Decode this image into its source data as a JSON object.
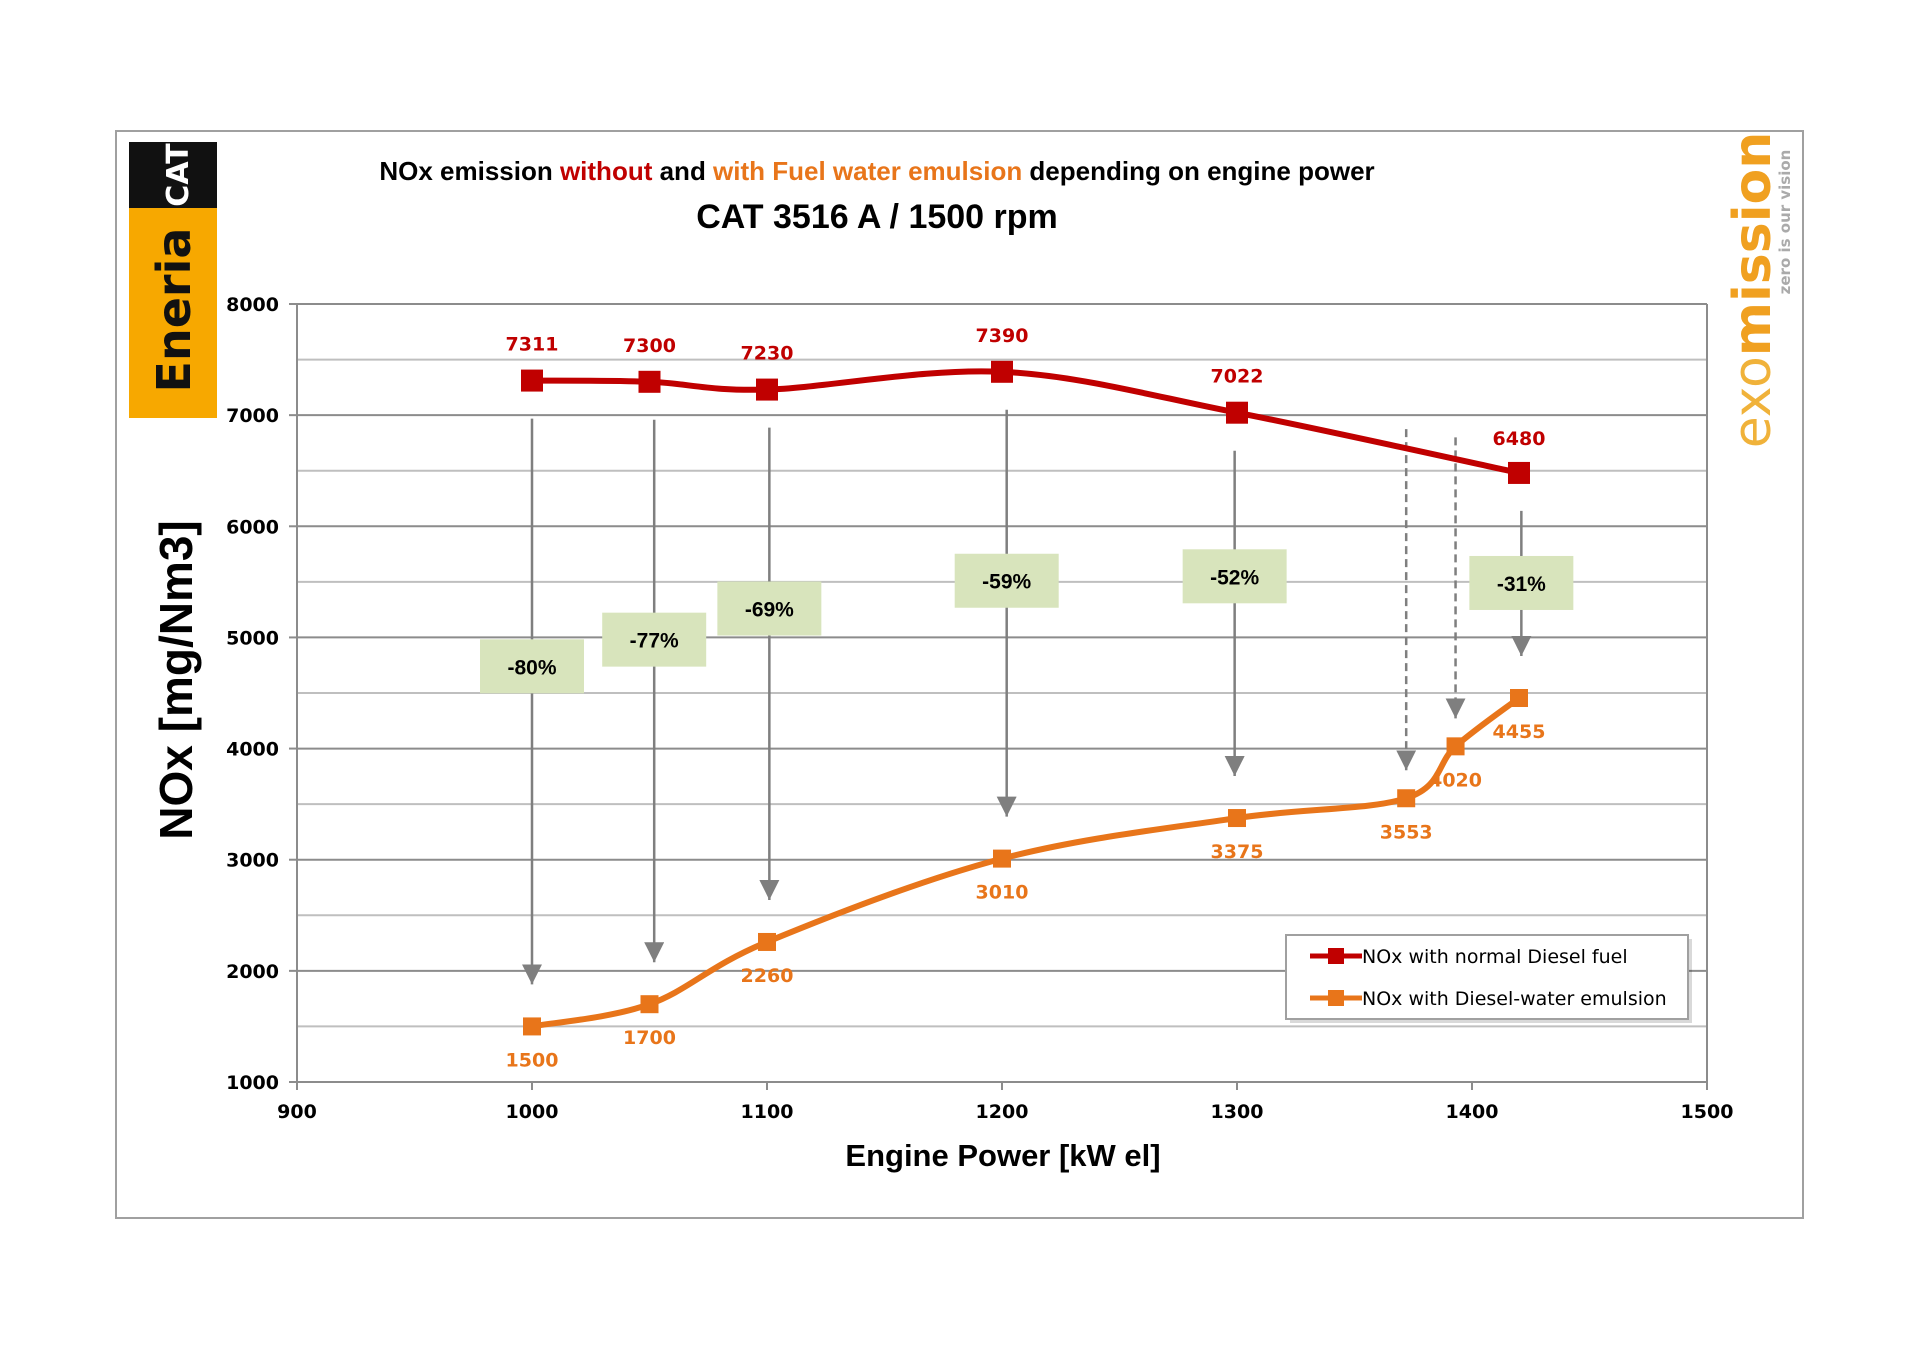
{
  "title": {
    "part1": "NOx emission ",
    "part2": "without",
    "part3": " and ",
    "part4": "with Fuel water emulsion",
    "part5": " depending on engine power",
    "subtitle": "CAT 3516 A / 1500 rpm"
  },
  "logos": {
    "left_brand": "Eneria",
    "left_badge": "CAT",
    "right_brand_a": "exo",
    "right_brand_b": "mission",
    "right_tagline": "zero is our vision"
  },
  "colors": {
    "red": "#c00000",
    "orange": "#e8751a",
    "grid": "#a6a6a6",
    "box": "#d8e4bc",
    "arrow": "#7f7f7f",
    "eneria": "#f7a800"
  },
  "chart_data": {
    "type": "line",
    "title": "NOx emission without and with Fuel water emulsion depending on engine power",
    "subtitle": "CAT 3516 A / 1500 rpm",
    "xlabel": "Engine Power [kW el]",
    "ylabel": "NOx [mg/Nm3]",
    "xlim": [
      900,
      1500
    ],
    "ylim": [
      1000,
      8000
    ],
    "xticks": [
      "900",
      "1000",
      "1100",
      "1200",
      "1300",
      "1400",
      "1500"
    ],
    "yticks": [
      "1000",
      "2000",
      "3000",
      "4000",
      "5000",
      "6000",
      "7000",
      "8000"
    ],
    "grid": true,
    "legend_position": "bottom-right",
    "series": [
      {
        "name": "NOx with normal Diesel fuel",
        "color": "#c00000",
        "x": [
          1000,
          1050,
          1100,
          1200,
          1300,
          1420
        ],
        "y": [
          7311,
          7300,
          7230,
          7390,
          7022,
          6480
        ],
        "labels": [
          "7311",
          "7300",
          "7230",
          "7390",
          "7022",
          "6480"
        ]
      },
      {
        "name": "NOx with Diesel-water emulsion",
        "color": "#e8751a",
        "x": [
          1000,
          1050,
          1100,
          1200,
          1300,
          1372,
          1393,
          1420
        ],
        "y": [
          1500,
          1700,
          2260,
          3010,
          3375,
          3553,
          4020,
          4455
        ],
        "labels": [
          "1500",
          "1700",
          "2260",
          "3010",
          "3375",
          "3553",
          "4020",
          "4455"
        ]
      }
    ],
    "annotations": [
      {
        "text": "-80%",
        "x": 1000,
        "y": 4740
      },
      {
        "text": "-77%",
        "x": 1052,
        "y": 4980
      },
      {
        "text": "-69%",
        "x": 1101,
        "y": 5260
      },
      {
        "text": "-59%",
        "x": 1202,
        "y": 5510
      },
      {
        "text": "-52%",
        "x": 1299,
        "y": 5550
      },
      {
        "text": "-31%",
        "x": 1421,
        "y": 5490
      }
    ]
  }
}
